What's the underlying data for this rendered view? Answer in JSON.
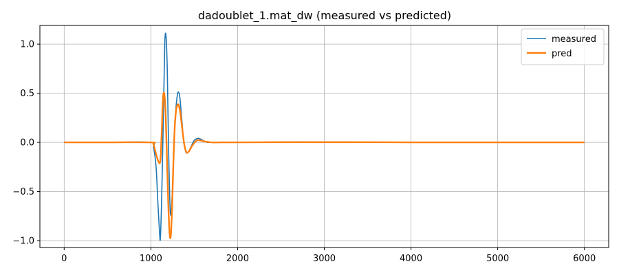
{
  "chart_data": {
    "type": "line",
    "title": "dadoublet_1.mat_dw  (measured vs predicted)",
    "xlabel": "",
    "ylabel": "",
    "xlim": [
      -280,
      6280
    ],
    "ylim": [
      -1.07,
      1.19
    ],
    "x_ticks": [
      0,
      1000,
      2000,
      3000,
      4000,
      5000,
      6000
    ],
    "y_ticks": [
      -1.0,
      -0.5,
      0.0,
      0.5,
      1.0
    ],
    "x_tick_labels": [
      "0",
      "1000",
      "2000",
      "3000",
      "4000",
      "5000",
      "6000"
    ],
    "y_tick_labels": [
      "−1.0",
      "−0.5",
      "0.0",
      "0.5",
      "1.0"
    ],
    "grid": true,
    "legend_position": "top-right",
    "series": [
      {
        "name": "measured",
        "color": "#1f77b4",
        "x": [
          0,
          500,
          1000,
          1030,
          1060,
          1080,
          1100,
          1110,
          1125,
          1145,
          1160,
          1175,
          1190,
          1205,
          1225,
          1245,
          1265,
          1285,
          1305,
          1320,
          1335,
          1355,
          1380,
          1405,
          1430,
          1460,
          1500,
          1540,
          1570,
          1600,
          1650,
          1700,
          1800,
          2000,
          2500,
          3000,
          3500,
          4000,
          4500,
          5000,
          5500,
          6000
        ],
        "y": [
          0.0,
          0.0,
          0.0,
          -0.05,
          -0.25,
          -0.6,
          -0.92,
          -0.97,
          -0.55,
          0.3,
          1.0,
          1.08,
          0.7,
          -0.1,
          -0.72,
          -0.55,
          -0.05,
          0.3,
          0.48,
          0.51,
          0.45,
          0.25,
          0.0,
          -0.1,
          -0.1,
          -0.05,
          0.02,
          0.04,
          0.035,
          0.02,
          0.0,
          0.0,
          0.0,
          0.0,
          0.003,
          0.003,
          0.002,
          0.0,
          0.0,
          0.0,
          0.0,
          0.0
        ]
      },
      {
        "name": "pred",
        "color": "#ff7f0e",
        "x": [
          0,
          500,
          1000,
          1030,
          1060,
          1090,
          1110,
          1125,
          1140,
          1155,
          1170,
          1185,
          1200,
          1215,
          1230,
          1245,
          1260,
          1275,
          1290,
          1305,
          1320,
          1340,
          1360,
          1385,
          1410,
          1440,
          1480,
          1530,
          1570,
          1620,
          1700,
          1800,
          2000,
          2500,
          3000,
          3500,
          4000,
          4500,
          5000,
          5500,
          6000
        ],
        "y": [
          0.0,
          0.0,
          0.0,
          -0.02,
          -0.12,
          -0.2,
          -0.18,
          0.1,
          0.45,
          0.49,
          0.3,
          -0.15,
          -0.6,
          -0.92,
          -0.95,
          -0.65,
          -0.2,
          0.15,
          0.32,
          0.38,
          0.38,
          0.3,
          0.15,
          -0.02,
          -0.1,
          -0.09,
          -0.03,
          0.02,
          0.02,
          0.01,
          0.0,
          0.0,
          0.0,
          0.002,
          0.002,
          0.002,
          0.0,
          0.0,
          0.0,
          0.0,
          0.0
        ]
      }
    ]
  }
}
